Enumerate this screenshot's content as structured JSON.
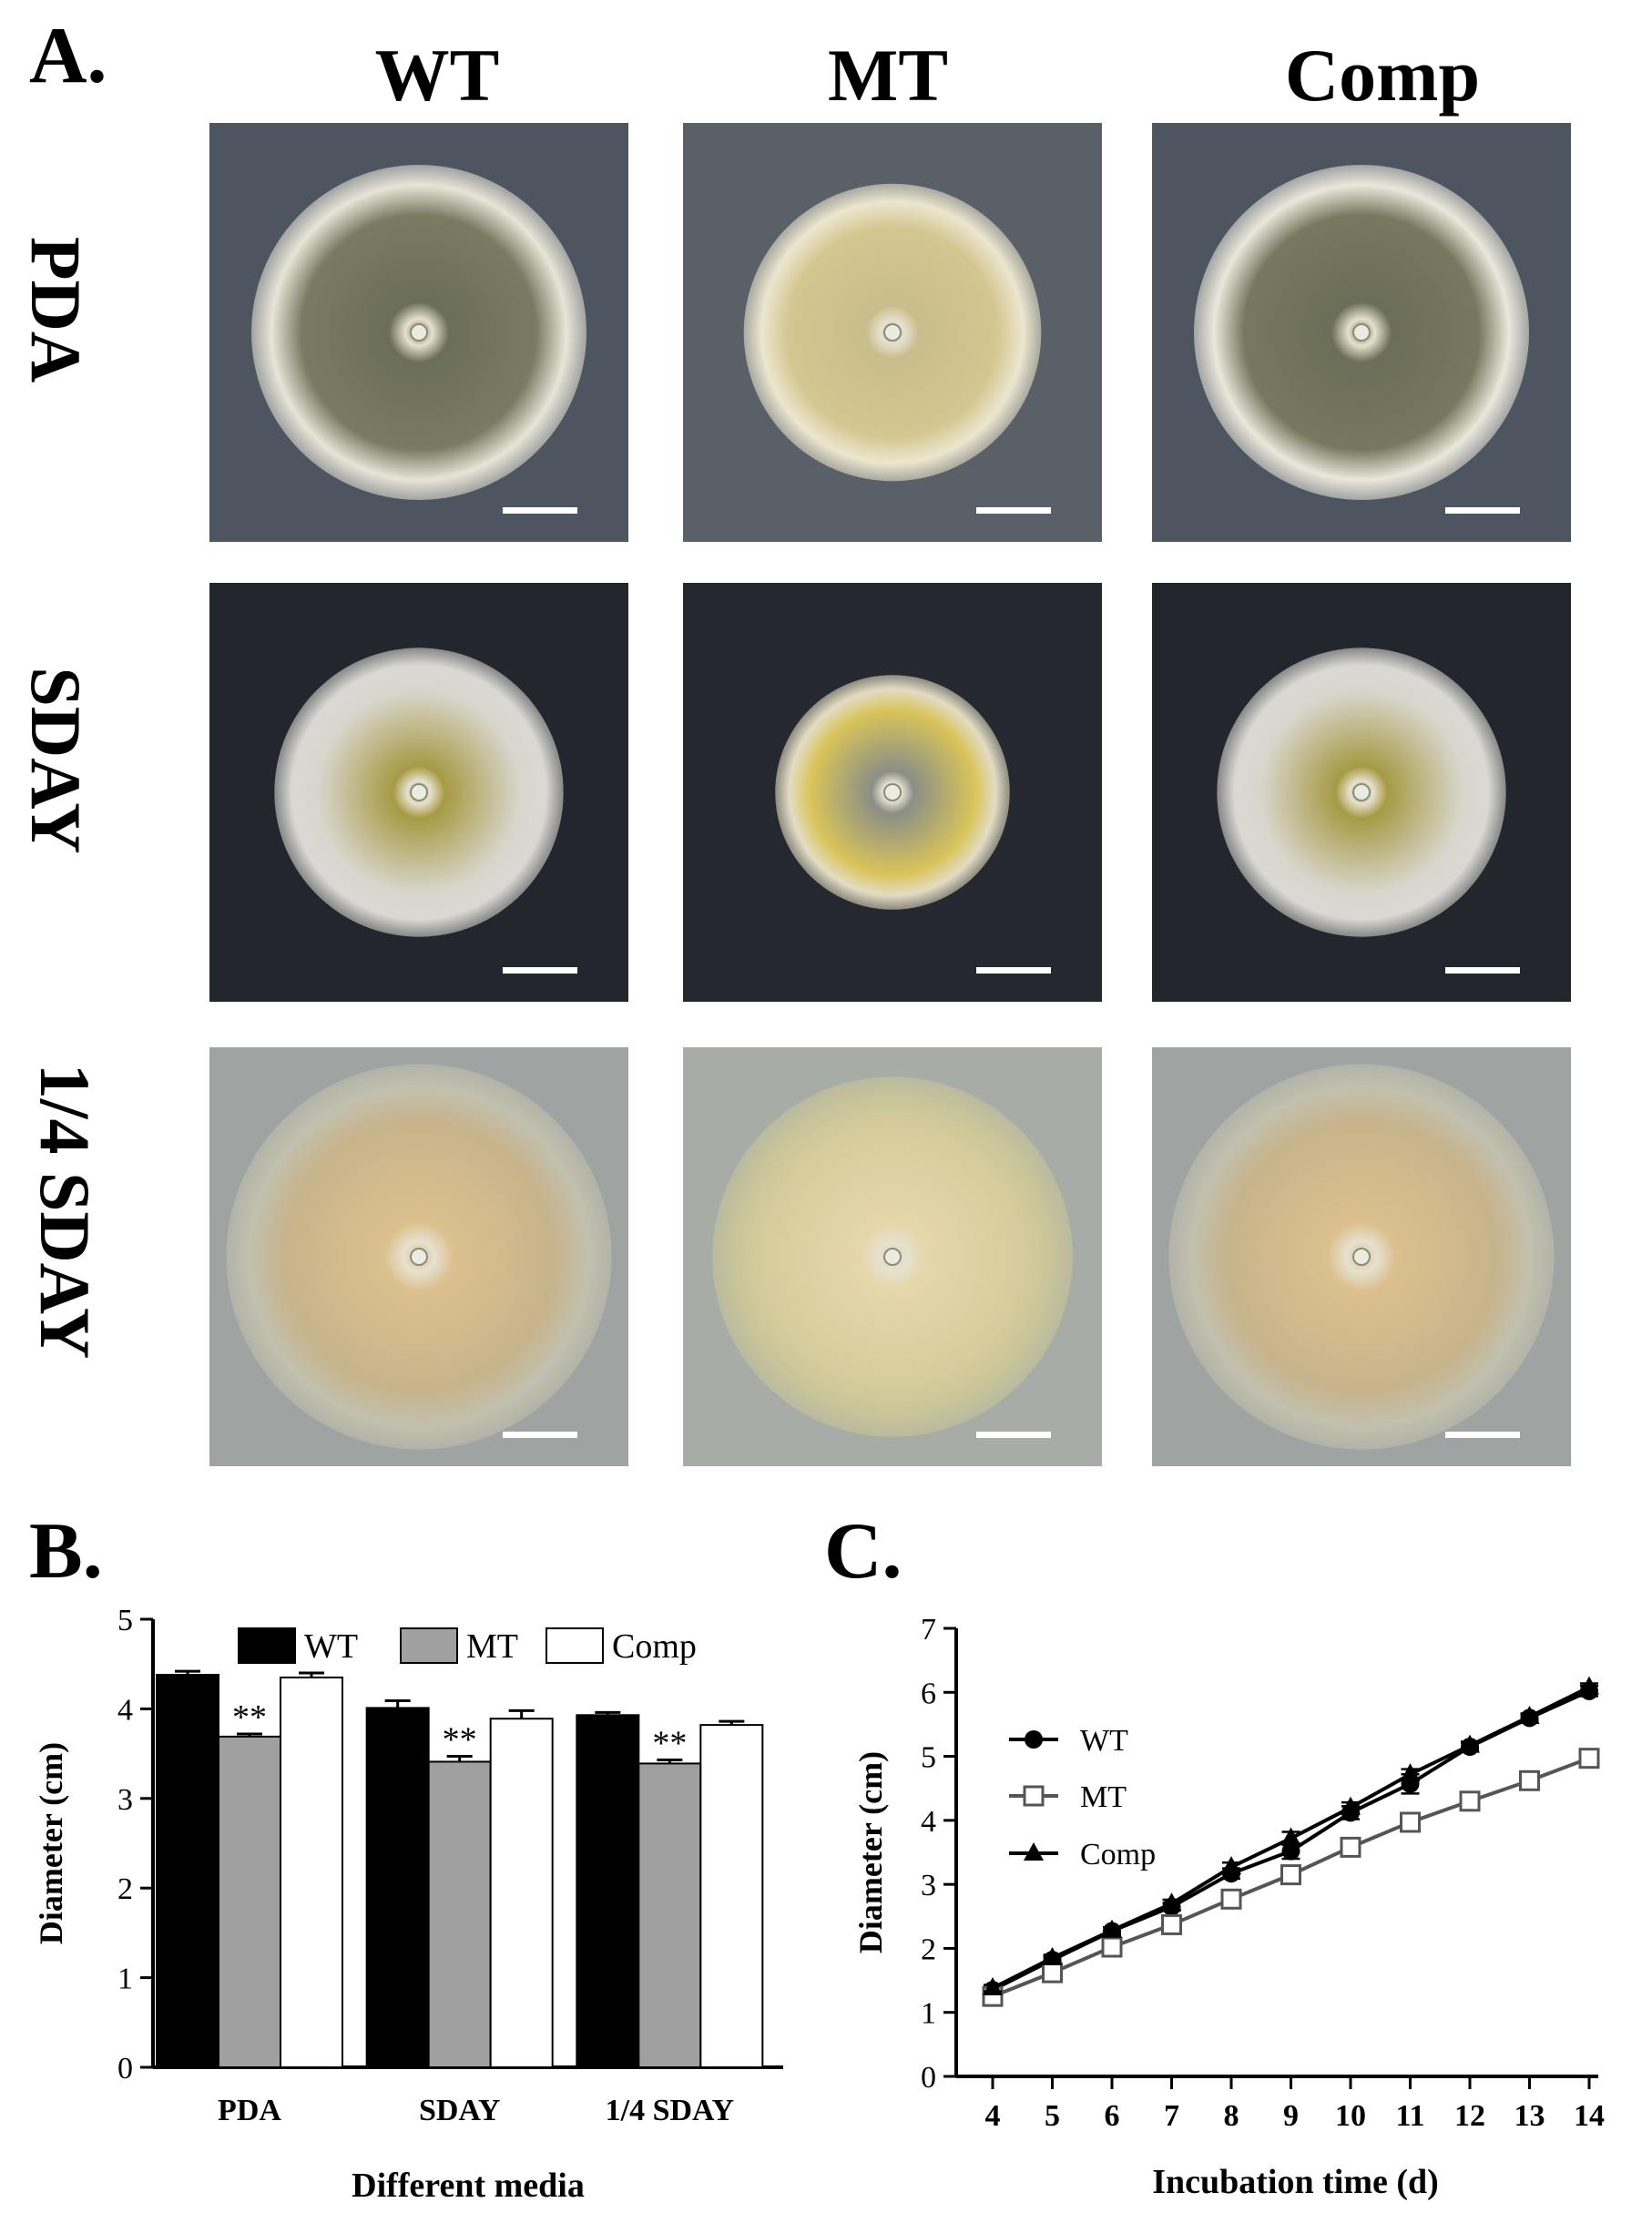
{
  "panels": {
    "a_label": "A.",
    "b_label": "B.",
    "c_label": "C."
  },
  "photo_grid": {
    "columns": [
      "WT",
      "MT",
      "Comp"
    ],
    "rows": [
      "PDA",
      "SDAY",
      "1/4 SDAY"
    ],
    "description_note": ""
  },
  "chart_data": [
    {
      "type": "bar",
      "title": "",
      "xlabel": "Different media",
      "ylabel": "Diameter (cm)",
      "categories": [
        "PDA",
        "SDAY",
        "1/4 SDAY"
      ],
      "ylim": [
        0,
        5
      ],
      "yticks": [
        "0",
        "1",
        "2",
        "3",
        "4",
        "5"
      ],
      "legend_position": "top",
      "series": [
        {
          "name": "WT",
          "color": "#000000",
          "values": [
            4.38,
            4.01,
            3.93
          ],
          "errors": [
            0.04,
            0.08,
            0.03
          ]
        },
        {
          "name": "MT",
          "color": "#a0a0a0",
          "values": [
            3.69,
            3.41,
            3.39
          ],
          "errors": [
            0.03,
            0.06,
            0.04
          ]
        },
        {
          "name": "Comp",
          "color": "#ffffff",
          "values": [
            4.35,
            3.89,
            3.82
          ],
          "errors": [
            0.05,
            0.09,
            0.04
          ]
        }
      ],
      "annotations": [
        {
          "category": "PDA",
          "series": "MT",
          "text": "**"
        },
        {
          "category": "SDAY",
          "series": "MT",
          "text": "**"
        },
        {
          "category": "1/4 SDAY",
          "series": "MT",
          "text": "**"
        }
      ]
    },
    {
      "type": "line",
      "title": "",
      "xlabel": "Incubation time (d)",
      "ylabel": "Diameter (cm)",
      "x": [
        4,
        5,
        6,
        7,
        8,
        9,
        10,
        11,
        12,
        13,
        14
      ],
      "xlim": [
        4,
        14
      ],
      "ylim": [
        0,
        7
      ],
      "xticks": [
        "4",
        "5",
        "6",
        "7",
        "8",
        "9",
        "10",
        "11",
        "12",
        "13",
        "14"
      ],
      "yticks": [
        "0",
        "1",
        "2",
        "3",
        "4",
        "5",
        "6",
        "7"
      ],
      "legend_position": "top-left",
      "series": [
        {
          "name": "WT",
          "marker": "circle",
          "values": [
            1.35,
            1.82,
            2.27,
            2.65,
            3.17,
            3.52,
            4.12,
            4.57,
            5.15,
            5.6,
            6.02
          ],
          "errors": [
            0.05,
            0.05,
            0.06,
            0.06,
            0.08,
            0.12,
            0.1,
            0.15,
            0.06,
            0.05,
            0.08
          ]
        },
        {
          "name": "MT",
          "marker": "open-square",
          "values": [
            1.25,
            1.62,
            2.02,
            2.37,
            2.77,
            3.15,
            3.58,
            3.97,
            4.3,
            4.62,
            4.97
          ],
          "errors": [
            0.05,
            0.05,
            0.06,
            0.06,
            0.07,
            0.1,
            0.07,
            0.07,
            0.08,
            0.1,
            0.08
          ]
        },
        {
          "name": "Comp",
          "marker": "triangle",
          "values": [
            1.38,
            1.85,
            2.28,
            2.7,
            3.27,
            3.72,
            4.2,
            4.72,
            5.17,
            5.62,
            6.08
          ],
          "errors": [
            0.05,
            0.05,
            0.05,
            0.06,
            0.07,
            0.1,
            0.08,
            0.08,
            0.06,
            0.05,
            0.06
          ]
        }
      ]
    }
  ]
}
